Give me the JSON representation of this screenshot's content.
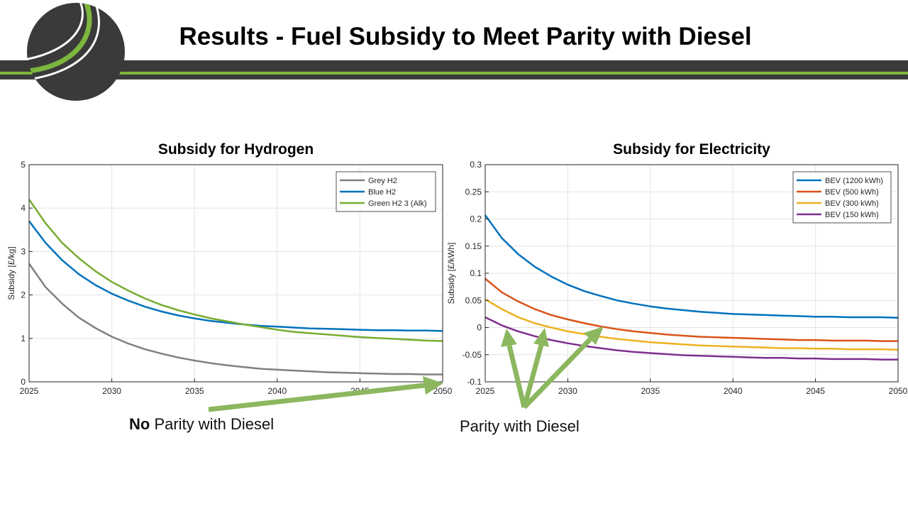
{
  "slide": {
    "title": "Results - Fuel Subsidy to Meet Parity with Diesel",
    "colors": {
      "banner": "#3a3a3a",
      "accent": "#7db63e",
      "logo": "#3a3a3a"
    }
  },
  "annotations": {
    "no_parity_bold": "No",
    "no_parity_rest": " Parity with Diesel",
    "parity": "Parity with Diesel",
    "arrow_color": "#8cb75f"
  },
  "chart_data": [
    {
      "type": "line",
      "title": "Subsidy for Hydrogen",
      "xlabel": "",
      "ylabel": "Subsidy [£/kg]",
      "xlim": [
        2025,
        2050
      ],
      "ylim": [
        0,
        5
      ],
      "xticks": [
        2025,
        2030,
        2035,
        2040,
        2045,
        2050
      ],
      "yticks": [
        0,
        1,
        2,
        3,
        4,
        5
      ],
      "ytick_labels": [
        "0",
        "1",
        "2",
        "3",
        "4",
        "5"
      ],
      "grid": true,
      "legend_position": "top-right",
      "x": [
        2025,
        2026,
        2027,
        2028,
        2029,
        2030,
        2031,
        2032,
        2033,
        2034,
        2035,
        2036,
        2037,
        2038,
        2039,
        2040,
        2041,
        2042,
        2043,
        2044,
        2045,
        2046,
        2047,
        2048,
        2049,
        2050
      ],
      "series": [
        {
          "name": "Grey H2",
          "color": "#808080",
          "values": [
            2.72,
            2.18,
            1.8,
            1.48,
            1.24,
            1.04,
            0.88,
            0.75,
            0.65,
            0.56,
            0.49,
            0.43,
            0.38,
            0.34,
            0.3,
            0.28,
            0.26,
            0.24,
            0.22,
            0.21,
            0.2,
            0.19,
            0.18,
            0.18,
            0.17,
            0.17
          ]
        },
        {
          "name": "Blue H2",
          "color": "#0072bd",
          "values": [
            3.7,
            3.2,
            2.8,
            2.48,
            2.23,
            2.03,
            1.87,
            1.73,
            1.62,
            1.53,
            1.46,
            1.4,
            1.36,
            1.32,
            1.29,
            1.27,
            1.25,
            1.23,
            1.22,
            1.21,
            1.2,
            1.19,
            1.19,
            1.18,
            1.18,
            1.17
          ]
        },
        {
          "name": "Green H2 3 (Alk)",
          "color": "#77ac30",
          "values": [
            4.2,
            3.65,
            3.2,
            2.85,
            2.55,
            2.3,
            2.1,
            1.92,
            1.77,
            1.65,
            1.55,
            1.46,
            1.39,
            1.32,
            1.26,
            1.2,
            1.15,
            1.12,
            1.09,
            1.06,
            1.03,
            1.01,
            0.99,
            0.97,
            0.95,
            0.94
          ]
        }
      ]
    },
    {
      "type": "line",
      "title": "Subsidy for Electricity",
      "xlabel": "",
      "ylabel": "Subsidy [£/kWh]",
      "xlim": [
        2025,
        2050
      ],
      "ylim": [
        -0.1,
        0.3
      ],
      "xticks": [
        2025,
        2030,
        2035,
        2040,
        2045,
        2050
      ],
      "yticks": [
        -0.1,
        -0.05,
        0,
        0.05,
        0.1,
        0.15,
        0.2,
        0.25,
        0.3
      ],
      "ytick_labels": [
        "-0.1",
        "-0.05",
        "0",
        "0.05",
        "0.1",
        "0.15",
        "0.2",
        "0.25",
        "0.3"
      ],
      "grid": true,
      "legend_position": "top-right",
      "x": [
        2025,
        2026,
        2027,
        2028,
        2029,
        2030,
        2031,
        2032,
        2033,
        2034,
        2035,
        2036,
        2037,
        2038,
        2039,
        2040,
        2041,
        2042,
        2043,
        2044,
        2045,
        2046,
        2047,
        2048,
        2049,
        2050
      ],
      "series": [
        {
          "name": "BEV (1200 kWh)",
          "color": "#0072bd",
          "values": [
            0.207,
            0.165,
            0.135,
            0.112,
            0.094,
            0.079,
            0.067,
            0.058,
            0.05,
            0.044,
            0.039,
            0.035,
            0.032,
            0.029,
            0.027,
            0.025,
            0.024,
            0.023,
            0.022,
            0.021,
            0.02,
            0.02,
            0.019,
            0.019,
            0.019,
            0.018
          ]
        },
        {
          "name": "BEV (500 kWh)",
          "color": "#d95319",
          "values": [
            0.09,
            0.065,
            0.048,
            0.034,
            0.023,
            0.015,
            0.008,
            0.002,
            -0.003,
            -0.007,
            -0.01,
            -0.013,
            -0.015,
            -0.017,
            -0.018,
            -0.019,
            -0.02,
            -0.021,
            -0.022,
            -0.023,
            -0.023,
            -0.024,
            -0.024,
            -0.024,
            -0.025,
            -0.025
          ]
        },
        {
          "name": "BEV (300 kWh)",
          "color": "#edb120",
          "values": [
            0.052,
            0.034,
            0.019,
            0.008,
            0.0,
            -0.007,
            -0.012,
            -0.017,
            -0.021,
            -0.024,
            -0.027,
            -0.029,
            -0.031,
            -0.033,
            -0.034,
            -0.035,
            -0.036,
            -0.037,
            -0.038,
            -0.038,
            -0.039,
            -0.039,
            -0.04,
            -0.04,
            -0.04,
            -0.041
          ]
        },
        {
          "name": "BEV (150 kWh)",
          "color": "#7e2f8e",
          "values": [
            0.019,
            0.004,
            -0.007,
            -0.016,
            -0.023,
            -0.029,
            -0.034,
            -0.038,
            -0.042,
            -0.045,
            -0.047,
            -0.049,
            -0.051,
            -0.052,
            -0.053,
            -0.054,
            -0.055,
            -0.056,
            -0.056,
            -0.057,
            -0.057,
            -0.058,
            -0.058,
            -0.058,
            -0.059,
            -0.059
          ]
        }
      ]
    }
  ]
}
